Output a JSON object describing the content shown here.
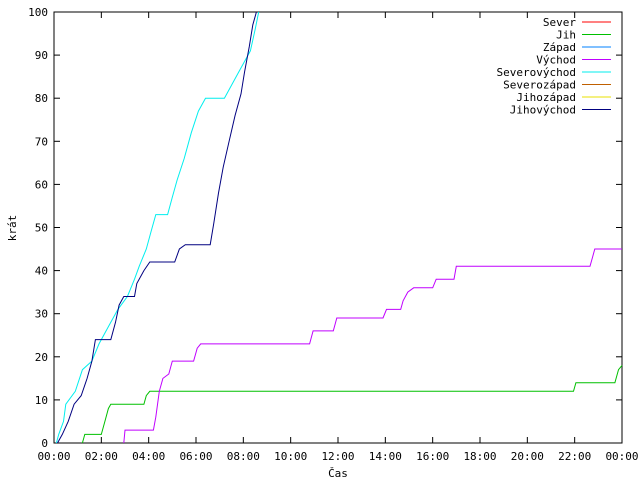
{
  "chart_data": {
    "type": "line",
    "xlabel": "Čas",
    "ylabel": "krát",
    "xlim": [
      0,
      24
    ],
    "ylim": [
      0,
      100
    ],
    "x_ticks": [
      {
        "v": 0,
        "label": "00:00"
      },
      {
        "v": 2,
        "label": "02:00"
      },
      {
        "v": 4,
        "label": "04:00"
      },
      {
        "v": 6,
        "label": "06:00"
      },
      {
        "v": 8,
        "label": "08:00"
      },
      {
        "v": 10,
        "label": "10:00"
      },
      {
        "v": 12,
        "label": "12:00"
      },
      {
        "v": 14,
        "label": "14:00"
      },
      {
        "v": 16,
        "label": "16:00"
      },
      {
        "v": 18,
        "label": "18:00"
      },
      {
        "v": 20,
        "label": "20:00"
      },
      {
        "v": 22,
        "label": "22:00"
      },
      {
        "v": 24,
        "label": "00:00"
      }
    ],
    "y_ticks": [
      {
        "v": 0,
        "label": "0"
      },
      {
        "v": 10,
        "label": "10"
      },
      {
        "v": 20,
        "label": "20"
      },
      {
        "v": 30,
        "label": "30"
      },
      {
        "v": 40,
        "label": "40"
      },
      {
        "v": 50,
        "label": "50"
      },
      {
        "v": 60,
        "label": "60"
      },
      {
        "v": 70,
        "label": "70"
      },
      {
        "v": 80,
        "label": "80"
      },
      {
        "v": 90,
        "label": "90"
      },
      {
        "v": 100,
        "label": "100"
      }
    ],
    "grid": false,
    "legend_position": "top-right",
    "series": [
      {
        "name": "Sever",
        "color": "#ff0000",
        "points": []
      },
      {
        "name": "Jih",
        "color": "#00c000",
        "points": [
          [
            1.2,
            0
          ],
          [
            1.3,
            2
          ],
          [
            2.0,
            2
          ],
          [
            2.15,
            5
          ],
          [
            2.3,
            8
          ],
          [
            2.4,
            9
          ],
          [
            3.8,
            9
          ],
          [
            3.9,
            11
          ],
          [
            4.05,
            12
          ],
          [
            21.95,
            12
          ],
          [
            22.05,
            14
          ],
          [
            23.7,
            14
          ],
          [
            23.85,
            17
          ],
          [
            24.0,
            18
          ]
        ]
      },
      {
        "name": "Západ",
        "color": "#0080ff",
        "points": []
      },
      {
        "name": "Východ",
        "color": "#c000ff",
        "points": [
          [
            2.95,
            0
          ],
          [
            3.0,
            3
          ],
          [
            4.2,
            3
          ],
          [
            4.3,
            6
          ],
          [
            4.45,
            12
          ],
          [
            4.6,
            15
          ],
          [
            4.85,
            16
          ],
          [
            5.0,
            19
          ],
          [
            5.9,
            19
          ],
          [
            6.05,
            22
          ],
          [
            6.2,
            23
          ],
          [
            10.8,
            23
          ],
          [
            10.95,
            26
          ],
          [
            11.8,
            26
          ],
          [
            11.95,
            29
          ],
          [
            13.9,
            29
          ],
          [
            14.05,
            31
          ],
          [
            14.65,
            31
          ],
          [
            14.75,
            33
          ],
          [
            14.95,
            35
          ],
          [
            15.2,
            36
          ],
          [
            16.0,
            36
          ],
          [
            16.15,
            38
          ],
          [
            16.9,
            38
          ],
          [
            17.0,
            41
          ],
          [
            22.65,
            41
          ],
          [
            22.75,
            43
          ],
          [
            22.85,
            45
          ],
          [
            24.0,
            45
          ]
        ]
      },
      {
        "name": "Severovýchod",
        "color": "#00eeee",
        "points": [
          [
            0.1,
            0
          ],
          [
            0.2,
            2
          ],
          [
            0.4,
            5
          ],
          [
            0.5,
            9
          ],
          [
            0.9,
            12
          ],
          [
            1.2,
            17
          ],
          [
            1.6,
            19
          ],
          [
            1.9,
            23
          ],
          [
            2.3,
            27
          ],
          [
            2.7,
            31
          ],
          [
            3.1,
            34
          ],
          [
            3.4,
            38
          ],
          [
            3.6,
            41
          ],
          [
            3.9,
            45
          ],
          [
            4.1,
            49
          ],
          [
            4.3,
            53
          ],
          [
            4.8,
            53
          ],
          [
            5.0,
            57
          ],
          [
            5.2,
            61
          ],
          [
            5.5,
            66
          ],
          [
            5.8,
            72
          ],
          [
            6.1,
            77
          ],
          [
            6.4,
            80
          ],
          [
            7.2,
            80
          ],
          [
            7.5,
            83
          ],
          [
            7.8,
            86
          ],
          [
            8.1,
            89
          ],
          [
            8.3,
            91
          ],
          [
            8.5,
            96
          ],
          [
            8.65,
            100
          ]
        ]
      },
      {
        "name": "Severozápad",
        "color": "#c06000",
        "points": []
      },
      {
        "name": "Jihozápad",
        "color": "#e8e000",
        "points": []
      },
      {
        "name": "Jihovýchod",
        "color": "#000080",
        "points": [
          [
            0.15,
            0
          ],
          [
            0.35,
            2
          ],
          [
            0.6,
            5
          ],
          [
            0.85,
            9
          ],
          [
            1.15,
            11
          ],
          [
            1.4,
            15
          ],
          [
            1.6,
            19
          ],
          [
            1.75,
            24
          ],
          [
            2.4,
            24
          ],
          [
            2.6,
            28
          ],
          [
            2.75,
            32
          ],
          [
            2.95,
            34
          ],
          [
            3.4,
            34
          ],
          [
            3.5,
            37
          ],
          [
            3.8,
            40
          ],
          [
            4.05,
            42
          ],
          [
            5.1,
            42
          ],
          [
            5.3,
            45
          ],
          [
            5.55,
            46
          ],
          [
            6.6,
            46
          ],
          [
            6.75,
            51
          ],
          [
            6.95,
            58
          ],
          [
            7.15,
            64
          ],
          [
            7.4,
            70
          ],
          [
            7.65,
            76
          ],
          [
            7.9,
            81
          ],
          [
            8.05,
            86
          ],
          [
            8.25,
            92
          ],
          [
            8.4,
            97
          ],
          [
            8.55,
            100
          ]
        ]
      }
    ]
  }
}
